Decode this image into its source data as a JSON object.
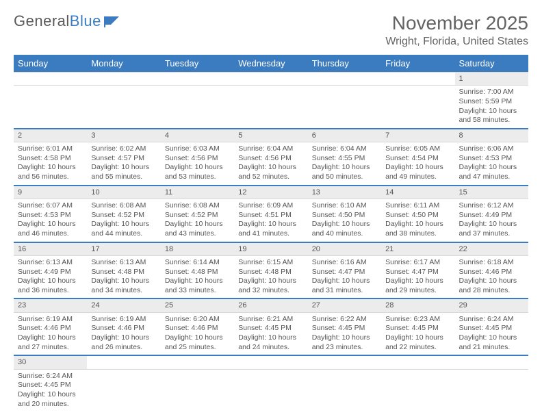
{
  "logo": {
    "text1": "General",
    "text2": "Blue"
  },
  "title": "November 2025",
  "location": "Wright, Florida, United States",
  "colors": {
    "header_bg": "#3b7bbf",
    "header_fg": "#ffffff",
    "daynum_bg": "#ececec",
    "row_border": "#3b7bbf",
    "text": "#555555",
    "page_bg": "#ffffff"
  },
  "day_headers": [
    "Sunday",
    "Monday",
    "Tuesday",
    "Wednesday",
    "Thursday",
    "Friday",
    "Saturday"
  ],
  "weeks": [
    {
      "nums": [
        "",
        "",
        "",
        "",
        "",
        "",
        "1"
      ],
      "cells": [
        null,
        null,
        null,
        null,
        null,
        null,
        {
          "sunrise": "Sunrise: 7:00 AM",
          "sunset": "Sunset: 5:59 PM",
          "daylight": "Daylight: 10 hours and 58 minutes."
        }
      ]
    },
    {
      "nums": [
        "2",
        "3",
        "4",
        "5",
        "6",
        "7",
        "8"
      ],
      "cells": [
        {
          "sunrise": "Sunrise: 6:01 AM",
          "sunset": "Sunset: 4:58 PM",
          "daylight": "Daylight: 10 hours and 56 minutes."
        },
        {
          "sunrise": "Sunrise: 6:02 AM",
          "sunset": "Sunset: 4:57 PM",
          "daylight": "Daylight: 10 hours and 55 minutes."
        },
        {
          "sunrise": "Sunrise: 6:03 AM",
          "sunset": "Sunset: 4:56 PM",
          "daylight": "Daylight: 10 hours and 53 minutes."
        },
        {
          "sunrise": "Sunrise: 6:04 AM",
          "sunset": "Sunset: 4:56 PM",
          "daylight": "Daylight: 10 hours and 52 minutes."
        },
        {
          "sunrise": "Sunrise: 6:04 AM",
          "sunset": "Sunset: 4:55 PM",
          "daylight": "Daylight: 10 hours and 50 minutes."
        },
        {
          "sunrise": "Sunrise: 6:05 AM",
          "sunset": "Sunset: 4:54 PM",
          "daylight": "Daylight: 10 hours and 49 minutes."
        },
        {
          "sunrise": "Sunrise: 6:06 AM",
          "sunset": "Sunset: 4:53 PM",
          "daylight": "Daylight: 10 hours and 47 minutes."
        }
      ]
    },
    {
      "nums": [
        "9",
        "10",
        "11",
        "12",
        "13",
        "14",
        "15"
      ],
      "cells": [
        {
          "sunrise": "Sunrise: 6:07 AM",
          "sunset": "Sunset: 4:53 PM",
          "daylight": "Daylight: 10 hours and 46 minutes."
        },
        {
          "sunrise": "Sunrise: 6:08 AM",
          "sunset": "Sunset: 4:52 PM",
          "daylight": "Daylight: 10 hours and 44 minutes."
        },
        {
          "sunrise": "Sunrise: 6:08 AM",
          "sunset": "Sunset: 4:52 PM",
          "daylight": "Daylight: 10 hours and 43 minutes."
        },
        {
          "sunrise": "Sunrise: 6:09 AM",
          "sunset": "Sunset: 4:51 PM",
          "daylight": "Daylight: 10 hours and 41 minutes."
        },
        {
          "sunrise": "Sunrise: 6:10 AM",
          "sunset": "Sunset: 4:50 PM",
          "daylight": "Daylight: 10 hours and 40 minutes."
        },
        {
          "sunrise": "Sunrise: 6:11 AM",
          "sunset": "Sunset: 4:50 PM",
          "daylight": "Daylight: 10 hours and 38 minutes."
        },
        {
          "sunrise": "Sunrise: 6:12 AM",
          "sunset": "Sunset: 4:49 PM",
          "daylight": "Daylight: 10 hours and 37 minutes."
        }
      ]
    },
    {
      "nums": [
        "16",
        "17",
        "18",
        "19",
        "20",
        "21",
        "22"
      ],
      "cells": [
        {
          "sunrise": "Sunrise: 6:13 AM",
          "sunset": "Sunset: 4:49 PM",
          "daylight": "Daylight: 10 hours and 36 minutes."
        },
        {
          "sunrise": "Sunrise: 6:13 AM",
          "sunset": "Sunset: 4:48 PM",
          "daylight": "Daylight: 10 hours and 34 minutes."
        },
        {
          "sunrise": "Sunrise: 6:14 AM",
          "sunset": "Sunset: 4:48 PM",
          "daylight": "Daylight: 10 hours and 33 minutes."
        },
        {
          "sunrise": "Sunrise: 6:15 AM",
          "sunset": "Sunset: 4:48 PM",
          "daylight": "Daylight: 10 hours and 32 minutes."
        },
        {
          "sunrise": "Sunrise: 6:16 AM",
          "sunset": "Sunset: 4:47 PM",
          "daylight": "Daylight: 10 hours and 31 minutes."
        },
        {
          "sunrise": "Sunrise: 6:17 AM",
          "sunset": "Sunset: 4:47 PM",
          "daylight": "Daylight: 10 hours and 29 minutes."
        },
        {
          "sunrise": "Sunrise: 6:18 AM",
          "sunset": "Sunset: 4:46 PM",
          "daylight": "Daylight: 10 hours and 28 minutes."
        }
      ]
    },
    {
      "nums": [
        "23",
        "24",
        "25",
        "26",
        "27",
        "28",
        "29"
      ],
      "cells": [
        {
          "sunrise": "Sunrise: 6:19 AM",
          "sunset": "Sunset: 4:46 PM",
          "daylight": "Daylight: 10 hours and 27 minutes."
        },
        {
          "sunrise": "Sunrise: 6:19 AM",
          "sunset": "Sunset: 4:46 PM",
          "daylight": "Daylight: 10 hours and 26 minutes."
        },
        {
          "sunrise": "Sunrise: 6:20 AM",
          "sunset": "Sunset: 4:46 PM",
          "daylight": "Daylight: 10 hours and 25 minutes."
        },
        {
          "sunrise": "Sunrise: 6:21 AM",
          "sunset": "Sunset: 4:45 PM",
          "daylight": "Daylight: 10 hours and 24 minutes."
        },
        {
          "sunrise": "Sunrise: 6:22 AM",
          "sunset": "Sunset: 4:45 PM",
          "daylight": "Daylight: 10 hours and 23 minutes."
        },
        {
          "sunrise": "Sunrise: 6:23 AM",
          "sunset": "Sunset: 4:45 PM",
          "daylight": "Daylight: 10 hours and 22 minutes."
        },
        {
          "sunrise": "Sunrise: 6:24 AM",
          "sunset": "Sunset: 4:45 PM",
          "daylight": "Daylight: 10 hours and 21 minutes."
        }
      ]
    },
    {
      "nums": [
        "30",
        "",
        "",
        "",
        "",
        "",
        ""
      ],
      "cells": [
        {
          "sunrise": "Sunrise: 6:24 AM",
          "sunset": "Sunset: 4:45 PM",
          "daylight": "Daylight: 10 hours and 20 minutes."
        },
        null,
        null,
        null,
        null,
        null,
        null
      ]
    }
  ]
}
